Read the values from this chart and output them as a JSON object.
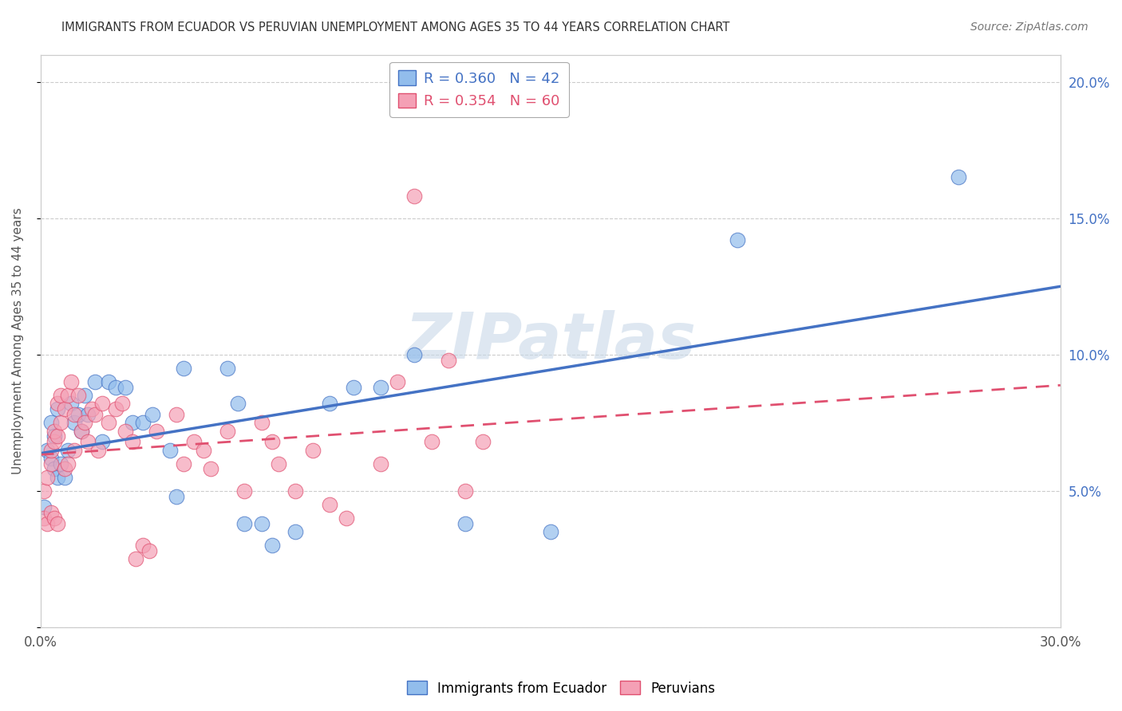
{
  "title": "IMMIGRANTS FROM ECUADOR VS PERUVIAN UNEMPLOYMENT AMONG AGES 35 TO 44 YEARS CORRELATION CHART",
  "source": "Source: ZipAtlas.com",
  "ylabel": "Unemployment Among Ages 35 to 44 years",
  "xmin": 0.0,
  "xmax": 0.3,
  "ymin": 0.0,
  "ymax": 0.21,
  "xticks": [
    0.0,
    0.05,
    0.1,
    0.15,
    0.2,
    0.25,
    0.3
  ],
  "yticks": [
    0.0,
    0.05,
    0.1,
    0.15,
    0.2
  ],
  "right_ytick_labels": [
    "",
    "5.0%",
    "10.0%",
    "15.0%",
    "20.0%"
  ],
  "legend_R1": "R = 0.360",
  "legend_N1": "N = 42",
  "legend_R2": "R = 0.354",
  "legend_N2": "N = 60",
  "color_ecuador": "#92BDEC",
  "color_peruvian": "#F4A0B5",
  "color_line_ecuador": "#4472C4",
  "color_line_peruvian": "#E05070",
  "ecuador_points": [
    [
      0.001,
      0.044
    ],
    [
      0.002,
      0.065
    ],
    [
      0.003,
      0.062
    ],
    [
      0.003,
      0.075
    ],
    [
      0.004,
      0.058
    ],
    [
      0.004,
      0.07
    ],
    [
      0.005,
      0.055
    ],
    [
      0.005,
      0.08
    ],
    [
      0.006,
      0.06
    ],
    [
      0.007,
      0.055
    ],
    [
      0.008,
      0.065
    ],
    [
      0.009,
      0.082
    ],
    [
      0.01,
      0.075
    ],
    [
      0.011,
      0.078
    ],
    [
      0.012,
      0.072
    ],
    [
      0.013,
      0.085
    ],
    [
      0.014,
      0.078
    ],
    [
      0.016,
      0.09
    ],
    [
      0.018,
      0.068
    ],
    [
      0.02,
      0.09
    ],
    [
      0.022,
      0.088
    ],
    [
      0.025,
      0.088
    ],
    [
      0.027,
      0.075
    ],
    [
      0.03,
      0.075
    ],
    [
      0.033,
      0.078
    ],
    [
      0.038,
      0.065
    ],
    [
      0.04,
      0.048
    ],
    [
      0.042,
      0.095
    ],
    [
      0.055,
      0.095
    ],
    [
      0.058,
      0.082
    ],
    [
      0.06,
      0.038
    ],
    [
      0.065,
      0.038
    ],
    [
      0.068,
      0.03
    ],
    [
      0.075,
      0.035
    ],
    [
      0.085,
      0.082
    ],
    [
      0.092,
      0.088
    ],
    [
      0.1,
      0.088
    ],
    [
      0.11,
      0.1
    ],
    [
      0.125,
      0.038
    ],
    [
      0.15,
      0.035
    ],
    [
      0.205,
      0.142
    ],
    [
      0.27,
      0.165
    ]
  ],
  "peruvian_points": [
    [
      0.001,
      0.04
    ],
    [
      0.001,
      0.05
    ],
    [
      0.002,
      0.038
    ],
    [
      0.002,
      0.055
    ],
    [
      0.003,
      0.042
    ],
    [
      0.003,
      0.06
    ],
    [
      0.003,
      0.065
    ],
    [
      0.004,
      0.04
    ],
    [
      0.004,
      0.068
    ],
    [
      0.004,
      0.072
    ],
    [
      0.005,
      0.038
    ],
    [
      0.005,
      0.07
    ],
    [
      0.005,
      0.082
    ],
    [
      0.006,
      0.075
    ],
    [
      0.006,
      0.085
    ],
    [
      0.007,
      0.058
    ],
    [
      0.007,
      0.08
    ],
    [
      0.008,
      0.06
    ],
    [
      0.008,
      0.085
    ],
    [
      0.009,
      0.09
    ],
    [
      0.01,
      0.065
    ],
    [
      0.01,
      0.078
    ],
    [
      0.011,
      0.085
    ],
    [
      0.012,
      0.072
    ],
    [
      0.013,
      0.075
    ],
    [
      0.014,
      0.068
    ],
    [
      0.015,
      0.08
    ],
    [
      0.016,
      0.078
    ],
    [
      0.017,
      0.065
    ],
    [
      0.018,
      0.082
    ],
    [
      0.02,
      0.075
    ],
    [
      0.022,
      0.08
    ],
    [
      0.024,
      0.082
    ],
    [
      0.025,
      0.072
    ],
    [
      0.027,
      0.068
    ],
    [
      0.028,
      0.025
    ],
    [
      0.03,
      0.03
    ],
    [
      0.032,
      0.028
    ],
    [
      0.034,
      0.072
    ],
    [
      0.04,
      0.078
    ],
    [
      0.042,
      0.06
    ],
    [
      0.045,
      0.068
    ],
    [
      0.048,
      0.065
    ],
    [
      0.05,
      0.058
    ],
    [
      0.055,
      0.072
    ],
    [
      0.06,
      0.05
    ],
    [
      0.065,
      0.075
    ],
    [
      0.068,
      0.068
    ],
    [
      0.07,
      0.06
    ],
    [
      0.075,
      0.05
    ],
    [
      0.08,
      0.065
    ],
    [
      0.085,
      0.045
    ],
    [
      0.09,
      0.04
    ],
    [
      0.1,
      0.06
    ],
    [
      0.105,
      0.09
    ],
    [
      0.11,
      0.158
    ],
    [
      0.115,
      0.068
    ],
    [
      0.12,
      0.098
    ],
    [
      0.125,
      0.05
    ],
    [
      0.13,
      0.068
    ]
  ]
}
